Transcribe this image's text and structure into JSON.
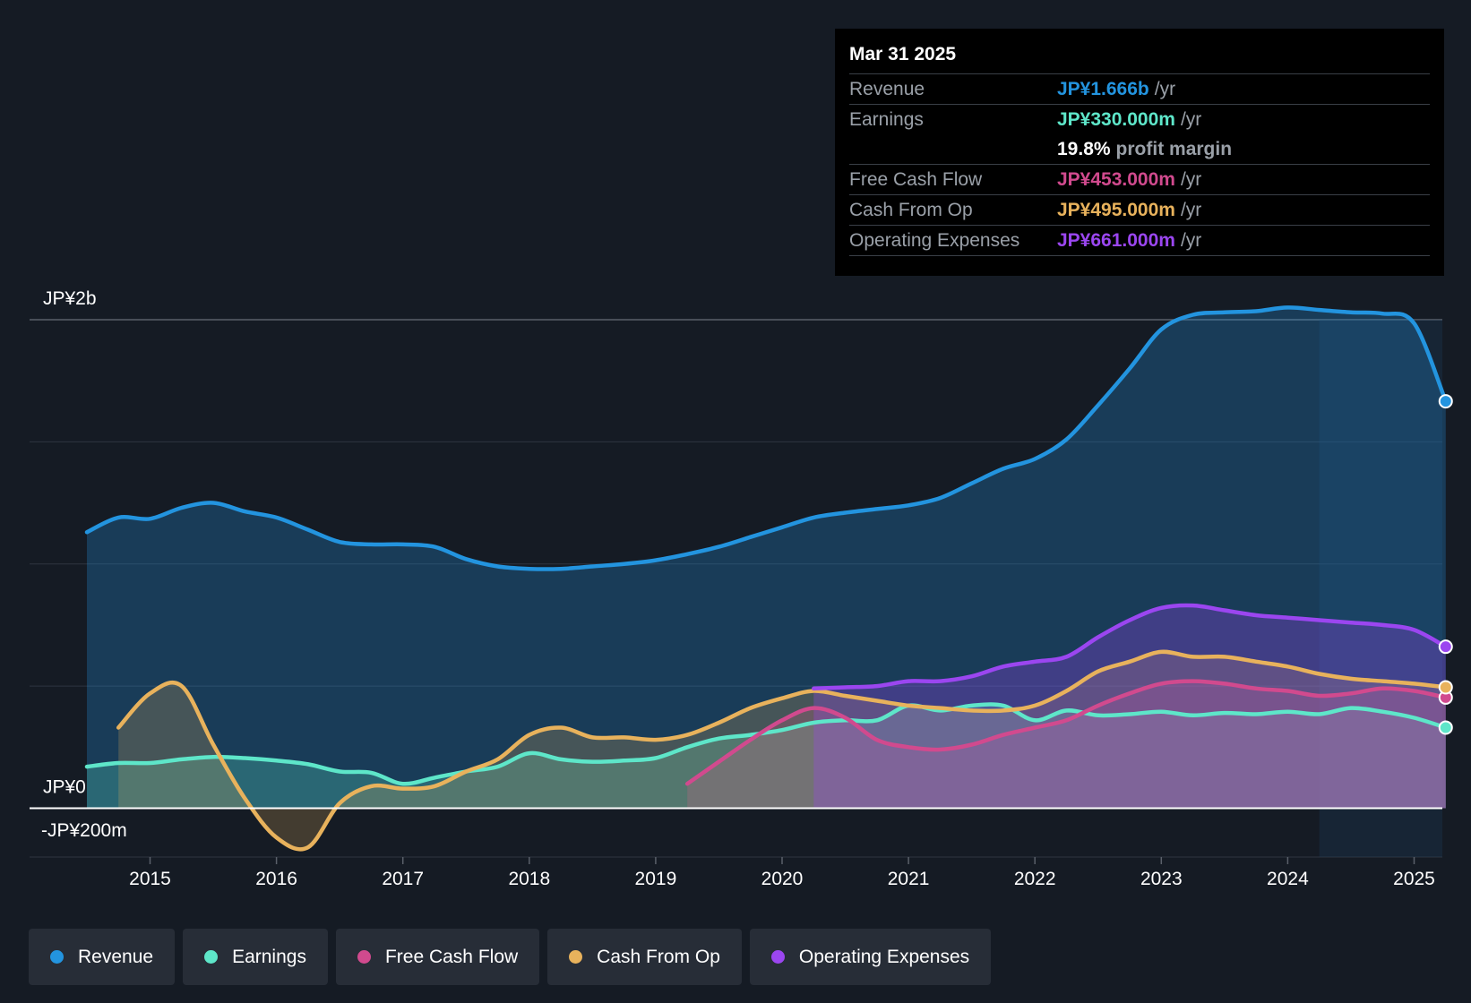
{
  "chart_data": {
    "type": "line",
    "y_labels": {
      "top": "JP¥2b",
      "zero": "JP¥0",
      "bottom": "-JP¥200m"
    },
    "ylim": [
      -200,
      2000
    ],
    "x_ticks": [
      "2015",
      "2016",
      "2017",
      "2018",
      "2019",
      "2020",
      "2021",
      "2022",
      "2023",
      "2024",
      "2025"
    ],
    "xlim": [
      2014.05,
      2025.25
    ],
    "forecast_start": 2024.25,
    "series": [
      {
        "name": "Revenue",
        "key": "revenue",
        "color": "#2394df",
        "x": [
          2014.5,
          2014.75,
          2015.0,
          2015.25,
          2015.5,
          2015.75,
          2016.0,
          2016.25,
          2016.5,
          2016.75,
          2017.0,
          2017.25,
          2017.5,
          2017.75,
          2018.0,
          2018.25,
          2018.5,
          2018.75,
          2019.0,
          2019.25,
          2019.5,
          2019.75,
          2020.0,
          2020.25,
          2020.5,
          2020.75,
          2021.0,
          2021.25,
          2021.5,
          2021.75,
          2022.0,
          2022.25,
          2022.5,
          2022.75,
          2023.0,
          2023.25,
          2023.5,
          2023.75,
          2024.0,
          2024.25,
          2024.5,
          2024.75,
          2025.0,
          2025.25
        ],
        "values": [
          1130,
          1190,
          1185,
          1230,
          1250,
          1215,
          1190,
          1140,
          1090,
          1080,
          1080,
          1070,
          1020,
          990,
          980,
          980,
          990,
          1000,
          1015,
          1040,
          1070,
          1110,
          1150,
          1190,
          1210,
          1225,
          1240,
          1270,
          1330,
          1390,
          1430,
          1510,
          1650,
          1800,
          1960,
          2020,
          2030,
          2035,
          2050,
          2040,
          2030,
          2025,
          1985,
          1666
        ]
      },
      {
        "name": "Earnings",
        "key": "earnings",
        "color": "#5ee6c9",
        "x": [
          2014.5,
          2014.75,
          2015.0,
          2015.25,
          2015.5,
          2015.75,
          2016.0,
          2016.25,
          2016.5,
          2016.75,
          2017.0,
          2017.25,
          2017.5,
          2017.75,
          2018.0,
          2018.25,
          2018.5,
          2018.75,
          2019.0,
          2019.25,
          2019.5,
          2019.75,
          2020.0,
          2020.25,
          2020.5,
          2020.75,
          2021.0,
          2021.25,
          2021.5,
          2021.75,
          2022.0,
          2022.25,
          2022.5,
          2022.75,
          2023.0,
          2023.25,
          2023.5,
          2023.75,
          2024.0,
          2024.25,
          2024.5,
          2024.75,
          2025.0,
          2025.25
        ],
        "values": [
          170,
          185,
          185,
          200,
          210,
          205,
          195,
          180,
          150,
          145,
          100,
          125,
          150,
          170,
          225,
          200,
          190,
          195,
          205,
          250,
          285,
          300,
          320,
          350,
          360,
          360,
          420,
          400,
          420,
          420,
          360,
          400,
          380,
          385,
          395,
          380,
          390,
          385,
          395,
          385,
          410,
          395,
          370,
          330
        ]
      },
      {
        "name": "Free Cash Flow",
        "key": "fcf",
        "color": "#d14a8e",
        "x": [
          2019.25,
          2019.5,
          2019.75,
          2020.0,
          2020.25,
          2020.5,
          2020.75,
          2021.0,
          2021.25,
          2021.5,
          2021.75,
          2022.0,
          2022.25,
          2022.5,
          2022.75,
          2023.0,
          2023.25,
          2023.5,
          2023.75,
          2024.0,
          2024.25,
          2024.5,
          2024.75,
          2025.0,
          2025.25
        ],
        "values": [
          100,
          190,
          280,
          360,
          410,
          370,
          280,
          250,
          240,
          260,
          300,
          330,
          360,
          420,
          470,
          510,
          520,
          510,
          490,
          480,
          460,
          470,
          490,
          480,
          453
        ]
      },
      {
        "name": "Cash From Op",
        "key": "cfo",
        "color": "#e8b25c",
        "x": [
          2014.75,
          2015.0,
          2015.25,
          2015.5,
          2015.75,
          2016.0,
          2016.25,
          2016.5,
          2016.75,
          2017.0,
          2017.25,
          2017.5,
          2017.75,
          2018.0,
          2018.25,
          2018.5,
          2018.75,
          2019.0,
          2019.25,
          2019.5,
          2019.75,
          2020.0,
          2020.25,
          2020.5,
          2020.75,
          2021.0,
          2021.25,
          2021.5,
          2021.75,
          2022.0,
          2022.25,
          2022.5,
          2022.75,
          2023.0,
          2023.25,
          2023.5,
          2023.75,
          2024.0,
          2024.25,
          2024.5,
          2024.75,
          2025.0,
          2025.25
        ],
        "values": [
          330,
          470,
          500,
          260,
          40,
          -120,
          -160,
          20,
          90,
          80,
          90,
          150,
          200,
          300,
          330,
          290,
          290,
          280,
          300,
          350,
          410,
          450,
          480,
          460,
          440,
          420,
          410,
          400,
          400,
          420,
          480,
          560,
          600,
          640,
          620,
          620,
          600,
          580,
          550,
          530,
          520,
          510,
          495
        ]
      },
      {
        "name": "Operating Expenses",
        "key": "opex",
        "color": "#9b46f0",
        "x": [
          2020.25,
          2020.5,
          2020.75,
          2021.0,
          2021.25,
          2021.5,
          2021.75,
          2022.0,
          2022.25,
          2022.5,
          2022.75,
          2023.0,
          2023.25,
          2023.5,
          2023.75,
          2024.0,
          2024.25,
          2024.5,
          2024.75,
          2025.0,
          2025.25
        ],
        "values": [
          490,
          495,
          500,
          520,
          520,
          540,
          580,
          600,
          620,
          700,
          770,
          820,
          830,
          810,
          790,
          780,
          770,
          760,
          750,
          730,
          661
        ]
      }
    ]
  },
  "tooltip": {
    "date": "Mar 31 2025",
    "rows": [
      {
        "label": "Revenue",
        "value": "JP¥1.666b",
        "unit": "/yr",
        "color": "#2394df"
      },
      {
        "label": "Earnings",
        "value": "JP¥330.000m",
        "unit": "/yr",
        "color": "#5ee6c9"
      },
      {
        "label": "",
        "value": "19.8%",
        "unit": "profit margin",
        "color": "#ffffff"
      },
      {
        "label": "Free Cash Flow",
        "value": "JP¥453.000m",
        "unit": "/yr",
        "color": "#d14a8e"
      },
      {
        "label": "Cash From Op",
        "value": "JP¥495.000m",
        "unit": "/yr",
        "color": "#e8b25c"
      },
      {
        "label": "Operating Expenses",
        "value": "JP¥661.000m",
        "unit": "/yr",
        "color": "#9b46f0"
      }
    ]
  },
  "legend": [
    {
      "label": "Revenue",
      "color": "#2394df"
    },
    {
      "label": "Earnings",
      "color": "#5ee6c9"
    },
    {
      "label": "Free Cash Flow",
      "color": "#d14a8e"
    },
    {
      "label": "Cash From Op",
      "color": "#e8b25c"
    },
    {
      "label": "Operating Expenses",
      "color": "#9b46f0"
    }
  ]
}
